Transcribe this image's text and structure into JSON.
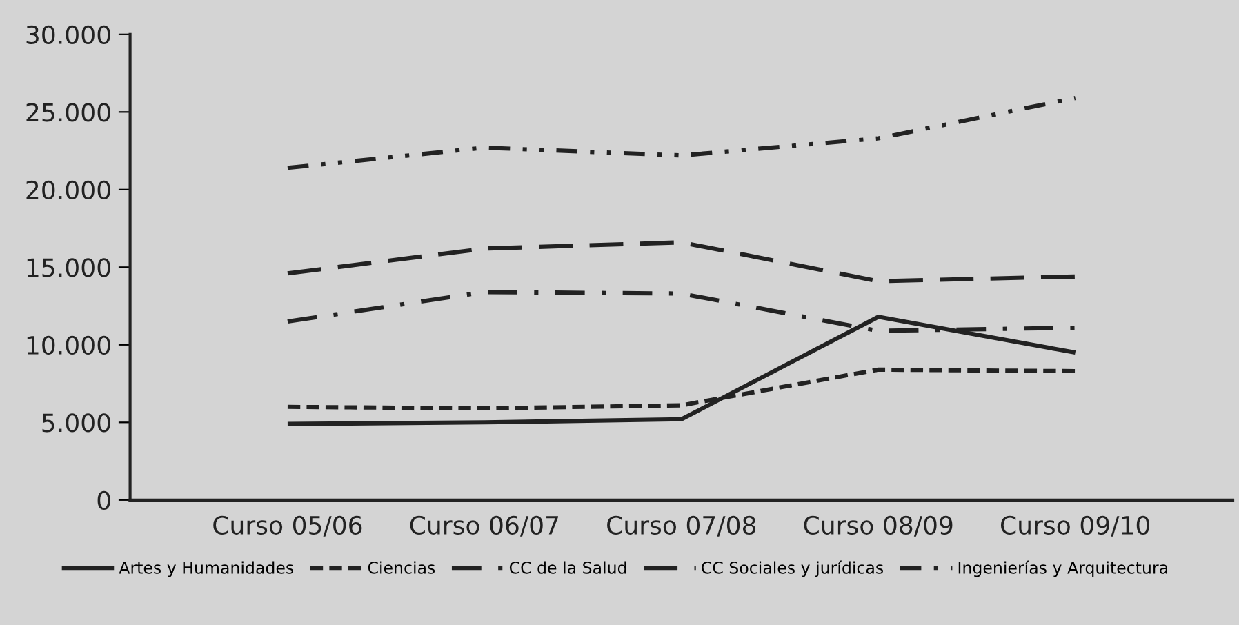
{
  "chart_data": {
    "type": "line",
    "categories": [
      "Curso 05/06",
      "Curso 06/07",
      "Curso 07/08",
      "Curso 08/09",
      "Curso 09/10"
    ],
    "series": [
      {
        "name": "Artes y Humanidades",
        "color": "#222222",
        "line_style": "solid",
        "values": [
          4900,
          5000,
          5200,
          11800,
          9500
        ]
      },
      {
        "name": "Ciencias",
        "color": "#222222",
        "line_style": "dashed",
        "values": [
          6000,
          5900,
          6100,
          8400,
          8300
        ]
      },
      {
        "name": "CC de la Salud",
        "color": "#222222",
        "line_style": "dashdot",
        "values": [
          11500,
          13400,
          13300,
          10900,
          11100
        ]
      },
      {
        "name": "CC Sociales y jurídicas",
        "color": "#222222",
        "line_style": "longdash",
        "values": [
          14600,
          16200,
          16600,
          14100,
          14400
        ]
      },
      {
        "name": "Ingenierías y Arquitectura",
        "color": "#222222",
        "line_style": "dashdotdot",
        "values": [
          21400,
          22700,
          22200,
          23300,
          25900
        ]
      }
    ],
    "ylim": [
      0,
      30000
    ],
    "yticks": [
      0,
      {
        "value": 5000,
        "label": "5.000"
      },
      {
        "value": 10000,
        "label": "10.000"
      },
      {
        "value": 15000,
        "label": "15.000"
      },
      {
        "value": 20000,
        "label": "20.000"
      },
      {
        "value": 25000,
        "label": "25.000"
      },
      {
        "value": 30000,
        "label": "30.000"
      }
    ],
    "grid": false,
    "legend": "bottom",
    "marker": "none"
  }
}
